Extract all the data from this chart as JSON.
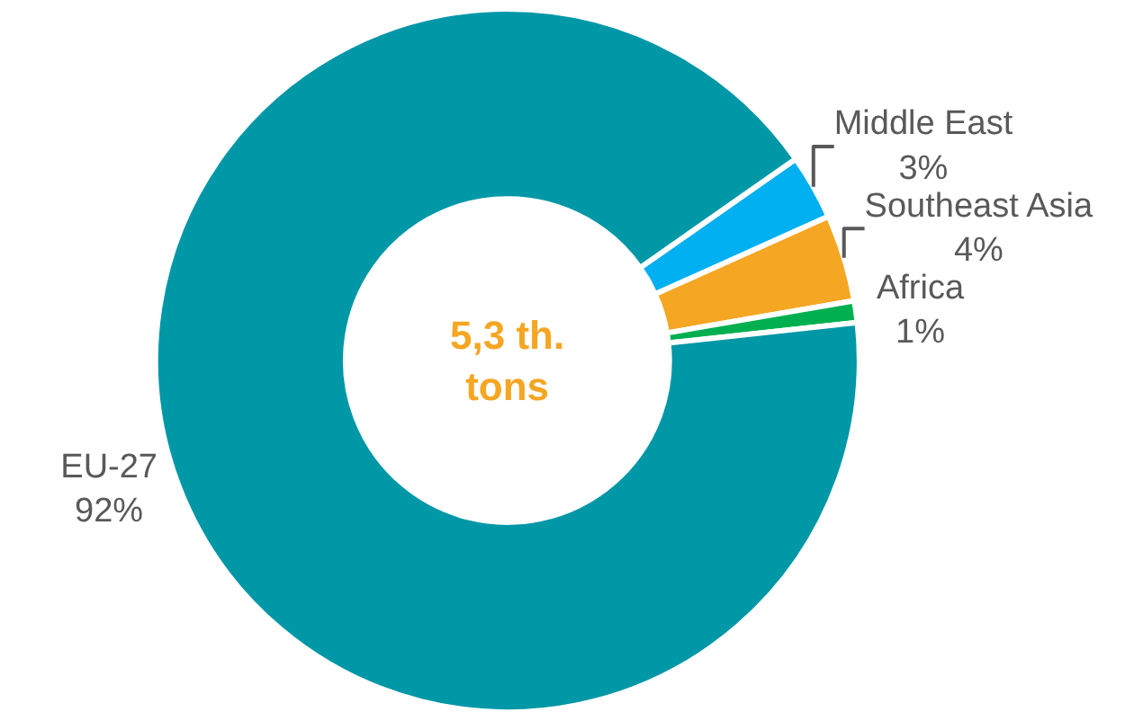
{
  "chart_data": {
    "type": "donut",
    "categories": [
      "Middle East",
      "Southeast Asia",
      "Africa",
      "EU-27"
    ],
    "values": [
      3,
      4,
      1,
      92
    ],
    "value_labels": [
      "3%",
      "4%",
      "1%",
      "92%"
    ],
    "colors": [
      "#00b0f0",
      "#f5a623",
      "#00b050",
      "#0097a7"
    ],
    "annotations": [
      "5,3 th. tons"
    ],
    "legend": false
  }
}
